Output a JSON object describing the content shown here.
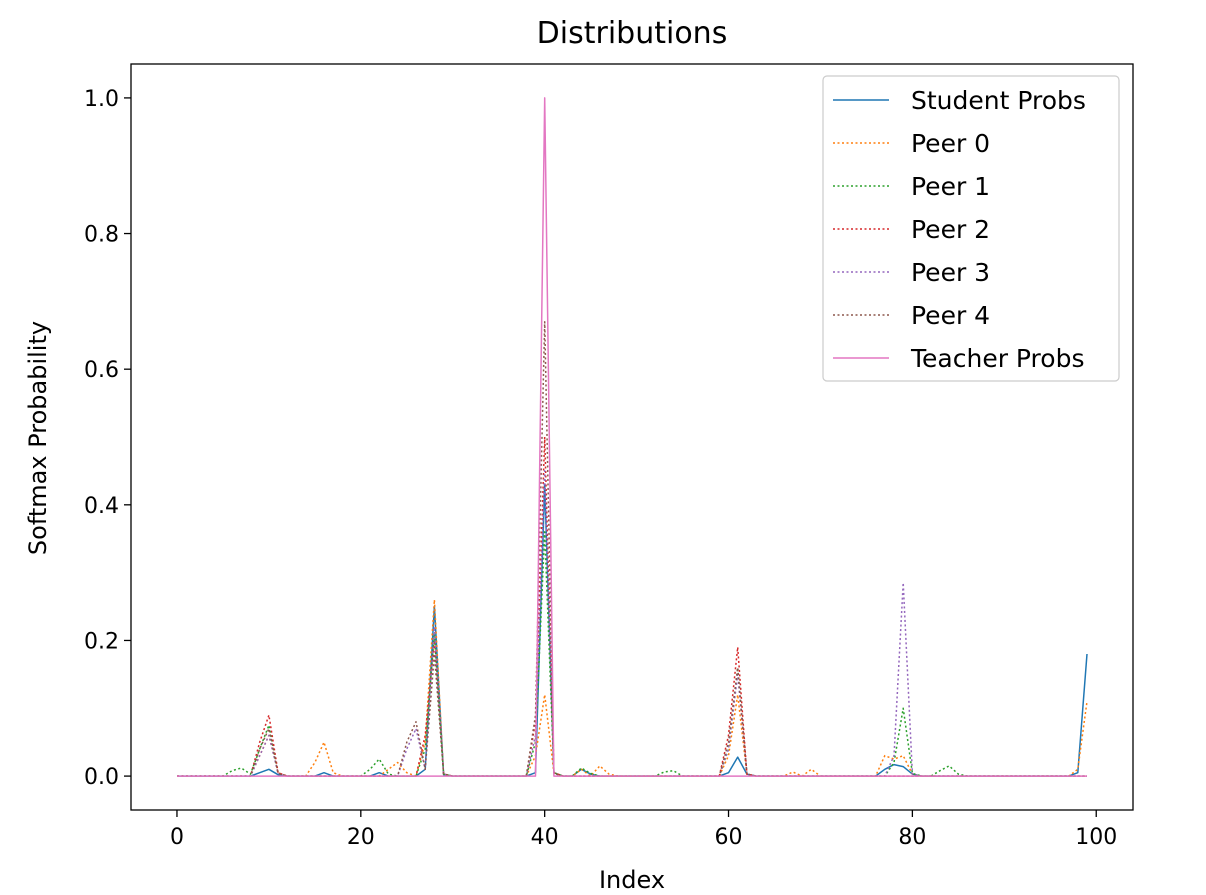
{
  "chart_data": {
    "type": "line",
    "title": "Distributions",
    "xlabel": "Index",
    "ylabel": "Softmax Probability",
    "xlim": [
      -5,
      104
    ],
    "ylim": [
      -0.05,
      1.05
    ],
    "xticks": [
      0,
      20,
      40,
      60,
      80,
      100
    ],
    "yticks": [
      0.0,
      0.2,
      0.4,
      0.6,
      0.8,
      1.0
    ],
    "xtick_labels": [
      "0",
      "20",
      "40",
      "60",
      "80",
      "100"
    ],
    "ytick_labels": [
      "0.0",
      "0.2",
      "0.4",
      "0.6",
      "0.8",
      "1.0"
    ],
    "grid": false,
    "legend_position": "top-right",
    "x_range": [
      0,
      99
    ],
    "series": [
      {
        "name": "Student Probs",
        "color": "#1f77b4",
        "style": "solid",
        "points": [
          [
            9,
            0.005
          ],
          [
            10,
            0.01
          ],
          [
            11,
            0.002
          ],
          [
            16,
            0.005
          ],
          [
            22,
            0.005
          ],
          [
            27,
            0.01
          ],
          [
            28,
            0.25
          ],
          [
            29,
            0.002
          ],
          [
            39,
            0.005
          ],
          [
            40,
            0.43
          ],
          [
            41,
            0.005
          ],
          [
            44,
            0.01
          ],
          [
            45,
            0.003
          ],
          [
            60,
            0.005
          ],
          [
            61,
            0.028
          ],
          [
            62,
            0.003
          ],
          [
            77,
            0.01
          ],
          [
            78,
            0.017
          ],
          [
            79,
            0.014
          ],
          [
            80,
            0.003
          ],
          [
            98,
            0.005
          ],
          [
            99,
            0.18
          ]
        ]
      },
      {
        "name": "Peer 0",
        "color": "#ff7f0e",
        "style": "dotted",
        "points": [
          [
            9,
            0.03
          ],
          [
            10,
            0.06
          ],
          [
            11,
            0.005
          ],
          [
            15,
            0.02
          ],
          [
            16,
            0.05
          ],
          [
            17,
            0.005
          ],
          [
            23,
            0.01
          ],
          [
            24,
            0.02
          ],
          [
            25,
            0.005
          ],
          [
            27,
            0.05
          ],
          [
            28,
            0.26
          ],
          [
            29,
            0.003
          ],
          [
            39,
            0.03
          ],
          [
            40,
            0.12
          ],
          [
            41,
            0.005
          ],
          [
            44,
            0.01
          ],
          [
            46,
            0.015
          ],
          [
            47,
            0.003
          ],
          [
            60,
            0.03
          ],
          [
            61,
            0.12
          ],
          [
            62,
            0.003
          ],
          [
            67,
            0.006
          ],
          [
            69,
            0.01
          ],
          [
            77,
            0.03
          ],
          [
            78,
            0.025
          ],
          [
            79,
            0.03
          ],
          [
            80,
            0.003
          ],
          [
            98,
            0.01
          ],
          [
            99,
            0.11
          ]
        ]
      },
      {
        "name": "Peer 1",
        "color": "#2ca02c",
        "style": "dotted",
        "points": [
          [
            6,
            0.008
          ],
          [
            7,
            0.012
          ],
          [
            8,
            0.003
          ],
          [
            9,
            0.04
          ],
          [
            10,
            0.075
          ],
          [
            11,
            0.004
          ],
          [
            21,
            0.01
          ],
          [
            22,
            0.025
          ],
          [
            23,
            0.003
          ],
          [
            27,
            0.04
          ],
          [
            28,
            0.21
          ],
          [
            29,
            0.003
          ],
          [
            39,
            0.05
          ],
          [
            40,
            0.36
          ],
          [
            41,
            0.005
          ],
          [
            44,
            0.012
          ],
          [
            45,
            0.004
          ],
          [
            53,
            0.006
          ],
          [
            54,
            0.008
          ],
          [
            60,
            0.04
          ],
          [
            61,
            0.16
          ],
          [
            62,
            0.003
          ],
          [
            78,
            0.02
          ],
          [
            79,
            0.1
          ],
          [
            80,
            0.004
          ],
          [
            83,
            0.008
          ],
          [
            84,
            0.015
          ],
          [
            85,
            0.003
          ]
        ]
      },
      {
        "name": "Peer 2",
        "color": "#d62728",
        "style": "dotted",
        "points": [
          [
            9,
            0.05
          ],
          [
            10,
            0.09
          ],
          [
            11,
            0.005
          ],
          [
            27,
            0.06
          ],
          [
            28,
            0.2
          ],
          [
            29,
            0.003
          ],
          [
            39,
            0.08
          ],
          [
            40,
            0.5
          ],
          [
            41,
            0.005
          ],
          [
            60,
            0.06
          ],
          [
            61,
            0.19
          ],
          [
            62,
            0.003
          ]
        ]
      },
      {
        "name": "Peer 3",
        "color": "#9467bd",
        "style": "dotted",
        "points": [
          [
            9,
            0.03
          ],
          [
            10,
            0.06
          ],
          [
            11,
            0.004
          ],
          [
            25,
            0.04
          ],
          [
            26,
            0.07
          ],
          [
            27,
            0.01
          ],
          [
            28,
            0.22
          ],
          [
            29,
            0.003
          ],
          [
            39,
            0.06
          ],
          [
            40,
            0.45
          ],
          [
            41,
            0.004
          ],
          [
            60,
            0.04
          ],
          [
            61,
            0.15
          ],
          [
            62,
            0.003
          ],
          [
            78,
            0.03
          ],
          [
            79,
            0.285
          ],
          [
            80,
            0.003
          ]
        ]
      },
      {
        "name": "Peer 4",
        "color": "#8c564b",
        "style": "dotted",
        "points": [
          [
            9,
            0.04
          ],
          [
            10,
            0.07
          ],
          [
            11,
            0.004
          ],
          [
            25,
            0.05
          ],
          [
            26,
            0.08
          ],
          [
            27,
            0.01
          ],
          [
            28,
            0.18
          ],
          [
            29,
            0.003
          ],
          [
            39,
            0.09
          ],
          [
            40,
            0.67
          ],
          [
            41,
            0.004
          ],
          [
            60,
            0.05
          ],
          [
            61,
            0.16
          ],
          [
            62,
            0.003
          ]
        ]
      },
      {
        "name": "Teacher Probs",
        "color": "#e377c2",
        "style": "solid",
        "points": [
          [
            39,
            0.0
          ],
          [
            40,
            1.0
          ],
          [
            41,
            0.0
          ]
        ]
      }
    ]
  }
}
